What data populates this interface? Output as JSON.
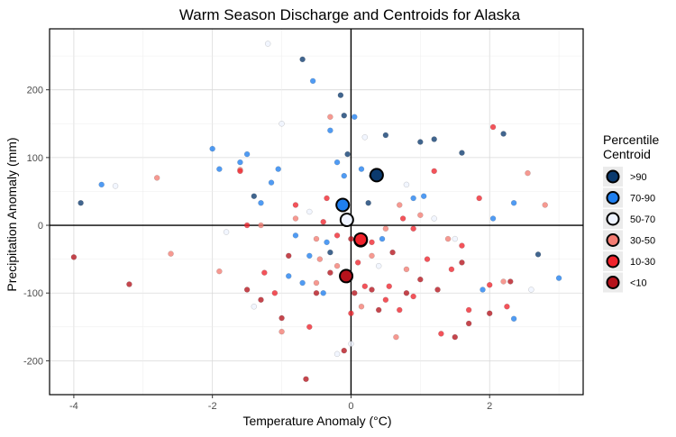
{
  "chart_data": {
    "type": "scatter",
    "title": "Warm Season Discharge and Centroids for Alaska",
    "xlabel": "Temperature Anomaly (°C)",
    "ylabel": "Precipitation Anomaly (mm)",
    "xlim": [
      -4.35,
      3.35
    ],
    "ylim": [
      -250,
      290
    ],
    "x_ticks": [
      -4,
      -2,
      0,
      2
    ],
    "y_ticks": [
      -200,
      -100,
      0,
      100,
      200
    ],
    "x_tick_labels": [
      "-4",
      "-2",
      "0",
      "2"
    ],
    "y_tick_labels": [
      "-200",
      "-100",
      "0",
      "100",
      "200"
    ],
    "grid": true,
    "reference_lines": {
      "x": 0,
      "y": 0
    },
    "legend": {
      "title_line1": "Percentile",
      "title_line2": "Centroid",
      "placement": "right"
    },
    "series": [
      {
        "name": ">90",
        "color": "#0b3a6e",
        "points": [
          [
            -3.9,
            33
          ],
          [
            -1.4,
            43
          ],
          [
            -0.7,
            245
          ],
          [
            -0.15,
            192
          ],
          [
            -0.1,
            162
          ],
          [
            -0.05,
            105
          ],
          [
            0.3,
            73
          ],
          [
            0.5,
            133
          ],
          [
            1.0,
            123
          ],
          [
            1.2,
            127
          ],
          [
            1.6,
            107
          ],
          [
            2.2,
            135
          ],
          [
            2.7,
            -43
          ],
          [
            0.25,
            33
          ],
          [
            -0.3,
            -40
          ]
        ],
        "centroid": [
          0.37,
          74
        ]
      },
      {
        "name": "70-90",
        "color": "#1f7fef",
        "points": [
          [
            -3.6,
            60
          ],
          [
            -2.0,
            113
          ],
          [
            -1.9,
            83
          ],
          [
            -1.6,
            93
          ],
          [
            -1.5,
            105
          ],
          [
            -1.3,
            33
          ],
          [
            -0.55,
            213
          ],
          [
            -0.3,
            140
          ],
          [
            -0.2,
            93
          ],
          [
            -0.1,
            73
          ],
          [
            0.05,
            160
          ],
          [
            0.15,
            83
          ],
          [
            0.45,
            -20
          ],
          [
            -1.05,
            83
          ],
          [
            -0.8,
            -15
          ],
          [
            -0.9,
            -75
          ],
          [
            -0.4,
            -100
          ],
          [
            1.9,
            -95
          ],
          [
            2.35,
            -138
          ],
          [
            2.35,
            33
          ],
          [
            3.0,
            -78
          ],
          [
            2.05,
            10
          ],
          [
            1.05,
            43
          ],
          [
            0.9,
            40
          ],
          [
            -0.7,
            -85
          ],
          [
            -1.15,
            63
          ],
          [
            -0.35,
            -25
          ],
          [
            -0.6,
            -45
          ]
        ],
        "centroid": [
          -0.12,
          30
        ]
      },
      {
        "name": "50-70",
        "color": "#eef3ff",
        "points": [
          [
            -1.2,
            268
          ],
          [
            -3.4,
            58
          ],
          [
            -1.8,
            -10
          ],
          [
            -1.0,
            150
          ],
          [
            0.4,
            -60
          ],
          [
            1.5,
            -20
          ],
          [
            2.6,
            -95
          ],
          [
            0.0,
            -175
          ],
          [
            -0.2,
            -190
          ],
          [
            0.8,
            60
          ],
          [
            -0.6,
            20
          ],
          [
            1.2,
            10
          ],
          [
            -1.4,
            -120
          ],
          [
            0.2,
            130
          ]
        ],
        "centroid": [
          -0.06,
          8
        ]
      },
      {
        "name": "30-50",
        "color": "#f47c72",
        "points": [
          [
            -2.8,
            70
          ],
          [
            -2.6,
            -42
          ],
          [
            -1.9,
            -68
          ],
          [
            -1.6,
            82
          ],
          [
            -1.0,
            -157
          ],
          [
            -0.5,
            -20
          ],
          [
            -0.3,
            160
          ],
          [
            0.15,
            -120
          ],
          [
            0.7,
            30
          ],
          [
            1.4,
            -20
          ],
          [
            2.2,
            -83
          ],
          [
            2.8,
            30
          ],
          [
            2.55,
            77
          ],
          [
            0.8,
            -65
          ],
          [
            0.5,
            -5
          ],
          [
            -0.5,
            -85
          ],
          [
            -0.8,
            10
          ],
          [
            -1.3,
            0
          ],
          [
            0.3,
            -45
          ],
          [
            1.0,
            15
          ],
          [
            -0.45,
            -50
          ],
          [
            -0.2,
            -60
          ],
          [
            0.65,
            -165
          ]
        ],
        "centroid": [
          0.14,
          -22
        ]
      },
      {
        "name": "10-30",
        "color": "#f0222b",
        "points": [
          [
            -1.6,
            80
          ],
          [
            -0.8,
            30
          ],
          [
            -0.4,
            5
          ],
          [
            0.2,
            -90
          ],
          [
            0.5,
            -110
          ],
          [
            0.9,
            -105
          ],
          [
            1.3,
            -160
          ],
          [
            1.7,
            -125
          ],
          [
            2.0,
            -88
          ],
          [
            2.25,
            -120
          ],
          [
            2.05,
            145
          ],
          [
            0.7,
            -125
          ],
          [
            1.1,
            -50
          ],
          [
            1.6,
            -30
          ],
          [
            -1.1,
            -100
          ],
          [
            -0.6,
            -150
          ],
          [
            0.1,
            -55
          ],
          [
            1.2,
            80
          ],
          [
            0.4,
            80
          ],
          [
            -0.2,
            -15
          ],
          [
            0.75,
            10
          ],
          [
            1.45,
            -65
          ],
          [
            -0.35,
            40
          ],
          [
            0.0,
            -130
          ],
          [
            0.55,
            -90
          ],
          [
            1.85,
            40
          ],
          [
            -1.25,
            -70
          ],
          [
            -1.5,
            0
          ],
          [
            0.3,
            -25
          ],
          [
            0.9,
            -5
          ]
        ],
        "centroid": [
          0.14,
          -21
        ]
      },
      {
        "name": "<10",
        "color": "#b5121b",
        "points": [
          [
            -4.0,
            -47
          ],
          [
            -3.2,
            -87
          ],
          [
            -1.3,
            -110
          ],
          [
            -1.0,
            -137
          ],
          [
            -0.65,
            -227
          ],
          [
            -0.3,
            -70
          ],
          [
            -0.1,
            -185
          ],
          [
            0.05,
            -100
          ],
          [
            0.3,
            -95
          ],
          [
            0.6,
            -40
          ],
          [
            1.25,
            -95
          ],
          [
            1.5,
            -165
          ],
          [
            2.0,
            -130
          ],
          [
            2.3,
            -83
          ],
          [
            1.6,
            -55
          ],
          [
            1.0,
            -80
          ],
          [
            0.4,
            -125
          ],
          [
            -0.5,
            -100
          ],
          [
            -0.9,
            -45
          ],
          [
            0.0,
            -20
          ],
          [
            0.8,
            -100
          ],
          [
            1.7,
            -145
          ],
          [
            -1.5,
            -95
          ]
        ],
        "centroid": [
          -0.07,
          -75
        ]
      }
    ]
  }
}
